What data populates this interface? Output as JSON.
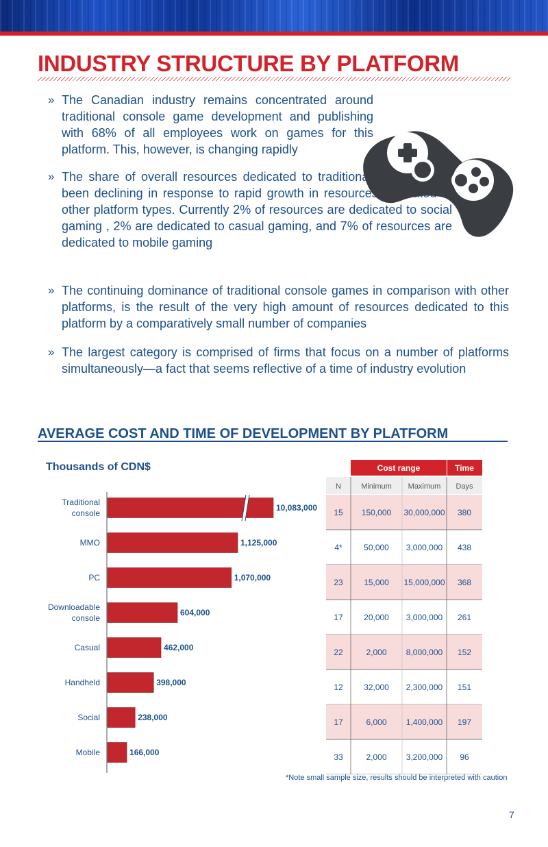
{
  "page": {
    "title": "INDUSTRY STRUCTURE BY PLATFORM",
    "bullet_mark": "»",
    "bullets": [
      "The Canadian industry remains concentrated around traditional console game development and publishing with 68% of all employees work on games for this platform. This, however, is changing rapidly",
      "The share of overall resources dedicated to traditional console have been declining in response to rapid growth in resources dedicated to other platform types. Currently 2% of resources are dedicated to social gaming , 2% are dedicated to casual gaming, and 7% of resources are dedicated to mobile gaming",
      "The continuing dominance of traditional console games in comparison with other platforms, is the result of the very high amount of resources dedicated to this platform by a comparatively small number of companies",
      "The largest category is comprised of firms that focus on a number of platforms simultaneously—a fact that seems reflective of a time of industry evolution"
    ],
    "decor_icon": "gamepad-icon",
    "section_title": "AVERAGE COST AND TIME OF DEVELOPMENT BY PLATFORM",
    "note": "*Note small sample size, results should be interpreted with caution",
    "page_number": "7"
  },
  "colors": {
    "accent_red": "#d2232a",
    "bar_red": "#c1272d",
    "text_blue": "#1d4f8a",
    "row_pink": "#f8dcdc",
    "gamepad": "#3a3d42"
  },
  "chart_data": [
    {
      "type": "bar",
      "orientation": "horizontal",
      "title": "Thousands of CDN$",
      "categories": [
        "Traditional console",
        "MMO",
        "PC",
        "Downloadable console",
        "Casual",
        "Handheld",
        "Social",
        "Mobile"
      ],
      "category_lines": [
        [
          "Traditional",
          "console"
        ],
        [
          "MMO"
        ],
        [
          "PC"
        ],
        [
          "Downloadable",
          "console"
        ],
        [
          "Casual"
        ],
        [
          "Handheld"
        ],
        [
          "Social"
        ],
        [
          "Mobile"
        ]
      ],
      "values": [
        10083000,
        1125000,
        1070000,
        604000,
        462000,
        398000,
        238000,
        166000
      ],
      "value_labels": [
        "10,083,000",
        "1,125,000",
        "1,070,000",
        "604,000",
        "462,000",
        "398,000",
        "238,000",
        "166,000"
      ],
      "broken_axis": true,
      "grid": false
    },
    {
      "type": "table",
      "group_headers": [
        "Cost range",
        "Time"
      ],
      "columns": [
        "N",
        "Minimum",
        "Maximum",
        "Days"
      ],
      "rows": [
        [
          "15",
          "150,000",
          "30,000,000",
          "380"
        ],
        [
          "4*",
          "50,000",
          "3,000,000",
          "438"
        ],
        [
          "23",
          "15,000",
          "15,000,000",
          "368"
        ],
        [
          "17",
          "20,000",
          "3,000,000",
          "261"
        ],
        [
          "22",
          "2,000",
          "8,000,000",
          "152"
        ],
        [
          "12",
          "32,000",
          "2,300,000",
          "151"
        ],
        [
          "17",
          "6,000",
          "1,400,000",
          "197"
        ],
        [
          "33",
          "2,000",
          "3,200,000",
          "96"
        ]
      ]
    }
  ]
}
